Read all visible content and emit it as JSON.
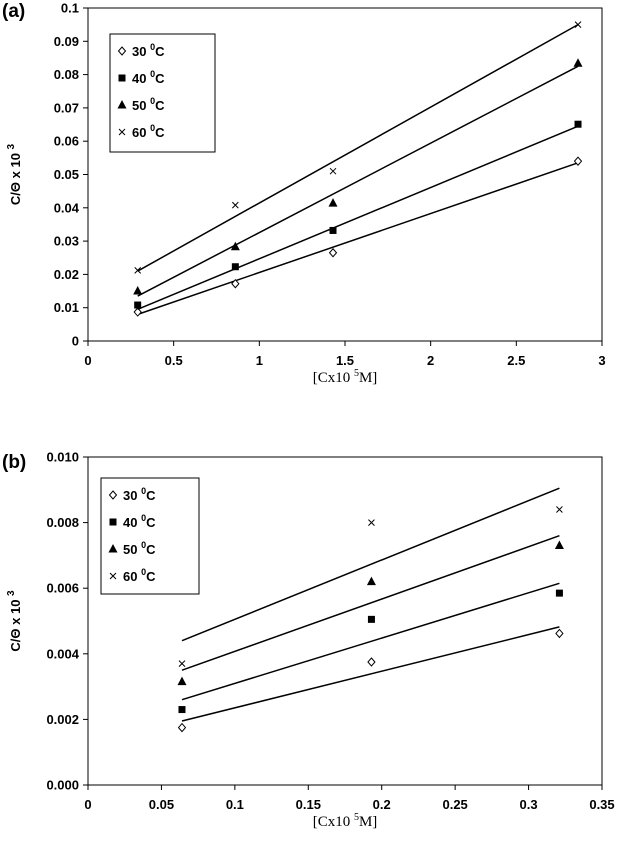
{
  "chart_data": [
    {
      "panel": "(a)",
      "type": "scatter",
      "xlabel": {
        "pre": "[Cx10 ",
        "sup": "5",
        "post": "M]"
      },
      "ylabel": {
        "pre": "C/Θ x 10 ",
        "sup": "3"
      },
      "xlim": [
        0,
        3
      ],
      "ylim": [
        0,
        0.1
      ],
      "xticks": [
        0,
        0.5,
        1,
        1.5,
        2,
        2.5,
        3
      ],
      "xtick_labels": [
        "0",
        "0.5",
        "1",
        "1.5",
        "2",
        "2.5",
        "3"
      ],
      "yticks": [
        0,
        0.01,
        0.02,
        0.03,
        0.04,
        0.05,
        0.06,
        0.07,
        0.08,
        0.09,
        0.1
      ],
      "ytick_labels": [
        "0",
        "0.01",
        "0.02",
        "0.03",
        "0.04",
        "0.05",
        "0.06",
        "0.07",
        "0.08",
        "0.09",
        "0.1"
      ],
      "grid": false,
      "legend_position": "top-left",
      "series": [
        {
          "name": "30 0C",
          "temp": "30 ",
          "deg": "0",
          "unit": "C",
          "marker": "diamond-open",
          "x": [
            0.29,
            0.86,
            1.43,
            2.86
          ],
          "y": [
            0.0087,
            0.0172,
            0.0265,
            0.054
          ],
          "fit": {
            "x": [
              0.29,
              2.86
            ],
            "y": [
              0.008,
              0.0535
            ]
          }
        },
        {
          "name": "40 0C",
          "temp": "40 ",
          "deg": "0",
          "unit": "C",
          "marker": "square",
          "x": [
            0.29,
            0.86,
            1.43,
            2.86
          ],
          "y": [
            0.0108,
            0.0223,
            0.0332,
            0.0651
          ],
          "fit": {
            "x": [
              0.29,
              2.86
            ],
            "y": [
              0.0095,
              0.0645
            ]
          }
        },
        {
          "name": "50 0C",
          "temp": "50 ",
          "deg": "0",
          "unit": "C",
          "marker": "triangle",
          "x": [
            0.29,
            0.86,
            1.43,
            2.86
          ],
          "y": [
            0.015,
            0.0283,
            0.0414,
            0.0834
          ],
          "fit": {
            "x": [
              0.29,
              2.86
            ],
            "y": [
              0.0135,
              0.0825
            ]
          }
        },
        {
          "name": "60 0C",
          "temp": "60 ",
          "deg": "0",
          "unit": "C",
          "marker": "x",
          "x": [
            0.29,
            0.86,
            1.43,
            2.86
          ],
          "y": [
            0.0212,
            0.0408,
            0.051,
            0.095
          ],
          "fit": {
            "x": [
              0.29,
              2.86
            ],
            "y": [
              0.021,
              0.095
            ]
          }
        }
      ]
    },
    {
      "panel": "(b)",
      "type": "scatter",
      "xlabel": {
        "pre": "[Cx10 ",
        "sup": "5",
        "post": "M]"
      },
      "ylabel": {
        "pre": "C/Θ x 10 ",
        "sup": "3"
      },
      "xlim": [
        0,
        0.35
      ],
      "ylim": [
        0,
        0.01
      ],
      "xticks": [
        0,
        0.05,
        0.1,
        0.15,
        0.2,
        0.25,
        0.3,
        0.35
      ],
      "xtick_labels": [
        "0",
        "0.05",
        "0.1",
        "0.15",
        "0.2",
        "0.25",
        "0.3",
        "0.35"
      ],
      "yticks": [
        0,
        0.002,
        0.004,
        0.006,
        0.008,
        0.01
      ],
      "ytick_labels": [
        "0.000",
        "0.002",
        "0.004",
        "0.006",
        "0.008",
        "0.010"
      ],
      "grid": false,
      "legend_position": "top-left",
      "series": [
        {
          "name": "30 0C",
          "temp": "30 ",
          "deg": "0",
          "unit": "C",
          "marker": "diamond-open",
          "x": [
            0.064,
            0.193,
            0.321
          ],
          "y": [
            0.00175,
            0.00375,
            0.00462
          ],
          "fit": {
            "x": [
              0.064,
              0.321
            ],
            "y": [
              0.00195,
              0.00482
            ]
          }
        },
        {
          "name": "40 0C",
          "temp": "40 ",
          "deg": "0",
          "unit": "C",
          "marker": "square",
          "x": [
            0.064,
            0.193,
            0.321
          ],
          "y": [
            0.0023,
            0.00505,
            0.00585
          ],
          "fit": {
            "x": [
              0.064,
              0.321
            ],
            "y": [
              0.0026,
              0.00615
            ]
          }
        },
        {
          "name": "50 0C",
          "temp": "50 ",
          "deg": "0",
          "unit": "C",
          "marker": "triangle",
          "x": [
            0.064,
            0.193,
            0.321
          ],
          "y": [
            0.00315,
            0.0062,
            0.0073
          ],
          "fit": {
            "x": [
              0.064,
              0.321
            ],
            "y": [
              0.0035,
              0.0076
            ]
          }
        },
        {
          "name": "60 0C",
          "temp": "60 ",
          "deg": "0",
          "unit": "C",
          "marker": "x",
          "x": [
            0.064,
            0.193,
            0.321
          ],
          "y": [
            0.0037,
            0.008,
            0.0084
          ],
          "fit": {
            "x": [
              0.064,
              0.321
            ],
            "y": [
              0.0044,
              0.00905
            ]
          }
        }
      ]
    }
  ]
}
